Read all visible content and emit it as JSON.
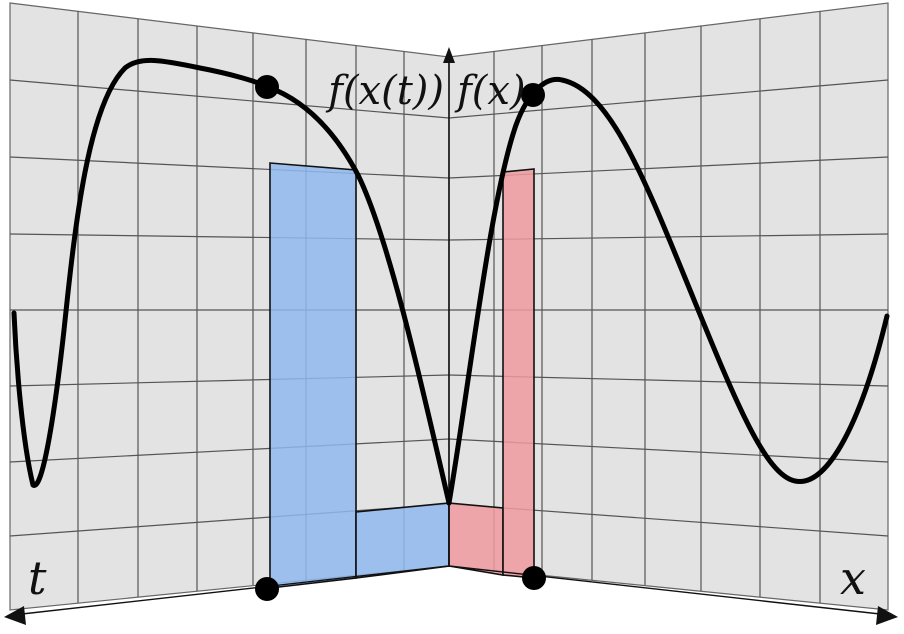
{
  "labels": {
    "left_axis": "t",
    "right_axis": "x",
    "left_function": "f(x(t))",
    "right_function": "f(x)"
  },
  "colors": {
    "panel_fill": "#e3e3e3",
    "grid_line": "#555555",
    "curve": "#000000",
    "blue_region": "#8fb8ee",
    "red_region": "#ee9aa0",
    "point": "#000000"
  }
}
